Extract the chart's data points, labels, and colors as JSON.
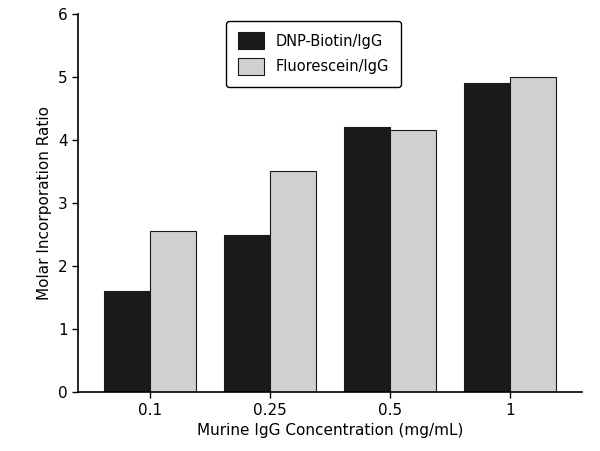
{
  "categories": [
    "0.1",
    "0.25",
    "0.5",
    "1"
  ],
  "dnp_biotin_values": [
    1.6,
    2.5,
    4.2,
    4.9
  ],
  "fluorescein_values": [
    2.55,
    3.5,
    4.15,
    5.0
  ],
  "bar_color_dnp": "#1a1a1a",
  "bar_color_fluor": "#d0d0d0",
  "bar_edgecolor": "#1a1a1a",
  "legend_labels": [
    "DNP-Biotin/IgG",
    "Fluorescein/IgG"
  ],
  "xlabel": "Murine IgG Concentration (mg/mL)",
  "ylabel": "Molar Incorporation Ratio",
  "ylim": [
    0,
    6
  ],
  "yticks": [
    0,
    1,
    2,
    3,
    4,
    5,
    6
  ],
  "bar_width": 0.38,
  "background_color": "#ffffff",
  "xlabel_fontsize": 11,
  "ylabel_fontsize": 11,
  "tick_fontsize": 11,
  "legend_fontsize": 10.5
}
